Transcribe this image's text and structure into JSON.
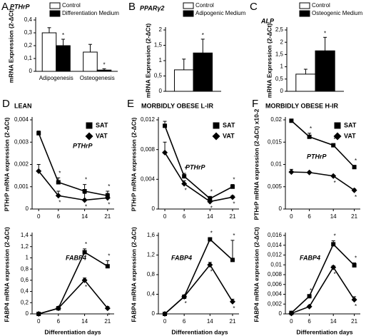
{
  "chart_data": [
    {
      "type": "bar",
      "panel": "A",
      "gene": "PTHrP",
      "ylabel": "mRNA Expression (2-ΔCt)",
      "categories": [
        "Adipogenesis",
        "Osteogenesis"
      ],
      "series": [
        {
          "name": "Control",
          "color": "#ffffff",
          "values": [
            0.3,
            0.15
          ],
          "errors": [
            0.04,
            0.06
          ],
          "significance": [
            null,
            null
          ]
        },
        {
          "name": "Differentiation Medium",
          "color": "#000000",
          "values": [
            0.2,
            0.01
          ],
          "errors": [
            0.05,
            0.01
          ],
          "significance": [
            "*",
            "*"
          ]
        }
      ],
      "ylim": [
        0,
        0.4
      ],
      "yticks": [
        0,
        {
          "value": 0.1,
          "label": "0,1"
        },
        {
          "value": 0.2,
          "label": "0,2"
        },
        {
          "value": 0.3,
          "label": "0,3"
        },
        {
          "value": 0.4,
          "label": "0,4"
        }
      ]
    },
    {
      "type": "bar",
      "panel": "B",
      "gene": "PPARγ2",
      "ylabel": "mRNA Expression (2-ΔCt)",
      "categories": [
        null
      ],
      "series": [
        {
          "name": "Control",
          "color": "#ffffff",
          "values": [
            0.7
          ],
          "errors": [
            0.35
          ],
          "significance": [
            null
          ]
        },
        {
          "name": "Adipogenic Medium",
          "color": "#000000",
          "values": [
            1.25
          ],
          "errors": [
            0.45
          ],
          "significance": [
            "*"
          ]
        }
      ],
      "ylim": [
        0,
        2
      ],
      "yticks": [
        0,
        {
          "value": 0.5,
          "label": "0,5"
        },
        1,
        {
          "value": 1.5,
          "label": "1,5"
        },
        2
      ]
    },
    {
      "type": "bar",
      "panel": "C",
      "gene": "ALP",
      "ylabel": "mRNA Expression (2-ΔCt)",
      "categories": [
        null
      ],
      "series": [
        {
          "name": "Control",
          "color": "#ffffff",
          "values": [
            0.7
          ],
          "errors": [
            0.2
          ],
          "significance": [
            null
          ]
        },
        {
          "name": "Osteogenic Medium",
          "color": "#000000",
          "values": [
            1.65
          ],
          "errors": [
            0.55
          ],
          "significance": [
            "*"
          ]
        }
      ],
      "ylim": [
        0,
        2.5
      ],
      "yticks": [
        0,
        {
          "value": 0.5,
          "label": "0,5"
        },
        1,
        {
          "value": 1.5,
          "label": "1,5"
        },
        2,
        {
          "value": 2.5,
          "label": "2,5"
        }
      ]
    },
    {
      "type": "line",
      "panel": "D",
      "title": "LEAN",
      "gene": "PTHrP",
      "ylabel": "PTHrP mRNA expression (2-ΔCt)",
      "x": [
        0,
        6,
        14,
        21
      ],
      "xlim": [
        -2,
        23
      ],
      "xticks": [
        0,
        6,
        14,
        21
      ],
      "series": [
        {
          "name": "SAT",
          "color": "#000000",
          "marker": "square",
          "values": [
            0.0034,
            0.0012,
            0.0008,
            0.0006
          ],
          "errors": [
            0.0001,
            0.0002,
            0.0003,
            0.0002
          ],
          "significance": [
            null,
            "*",
            "*",
            "*"
          ]
        },
        {
          "name": "VAT",
          "color": "#000000",
          "marker": "diamond",
          "values": [
            0.0017,
            0.0006,
            0.0004,
            0.0005
          ],
          "errors": [
            0.0003,
            0.0002,
            0.0003,
            0.0002
          ],
          "significance": [
            null,
            "*",
            "*",
            "*"
          ]
        }
      ],
      "ylim": [
        0,
        0.004
      ],
      "yticks": [
        0,
        {
          "value": 0.001,
          "label": "0,001"
        },
        {
          "value": 0.002,
          "label": "0,002"
        },
        {
          "value": 0.003,
          "label": "0,003"
        },
        {
          "value": 0.004,
          "label": "0,004"
        }
      ]
    },
    {
      "type": "line",
      "gene": "FABP4",
      "ylabel": "FABP4 mRNA expression (2-ΔCt)",
      "xlabel": "Differentiation days",
      "x": [
        0,
        6,
        14,
        21
      ],
      "xlim": [
        -2,
        23
      ],
      "xticks": [
        0,
        6,
        14,
        21
      ],
      "series": [
        {
          "name": "SAT",
          "color": "#000000",
          "marker": "square",
          "values": [
            0,
            0.1,
            1.1,
            0.85
          ],
          "errors": [
            0.02,
            0.03,
            0.06,
            0.1
          ],
          "significance": [
            null,
            null,
            "*",
            "*"
          ]
        },
        {
          "name": "VAT",
          "color": "#000000",
          "marker": "diamond",
          "values": [
            0,
            0.1,
            0.6,
            0.1
          ],
          "errors": [
            0.01,
            0.02,
            0.04,
            0.03
          ],
          "significance": [
            null,
            null,
            "*",
            "*"
          ]
        }
      ],
      "ylim": [
        0,
        1.4
      ],
      "yticks": [
        0,
        {
          "value": 0.2,
          "label": "0,2"
        },
        {
          "value": 0.4,
          "label": "0,4"
        },
        {
          "value": 0.6,
          "label": "0,6"
        },
        {
          "value": 0.8,
          "label": "0,8"
        },
        1,
        {
          "value": 1.2,
          "label": "1,2"
        },
        {
          "value": 1.4,
          "label": "1,4"
        }
      ]
    },
    {
      "type": "line",
      "panel": "E",
      "title": "MORBIDLY OBESE L-IR",
      "gene": "PTHrP",
      "ylabel": "PTHrP mRNA expression (2-ΔCt)",
      "x": [
        0,
        6,
        14,
        21
      ],
      "xlim": [
        -2,
        23
      ],
      "xticks": [
        0,
        6,
        14,
        21
      ],
      "series": [
        {
          "name": "SAT",
          "color": "#000000",
          "marker": "square",
          "values": [
            0.0112,
            0.0044,
            0.0014,
            0.003
          ],
          "errors": [
            0.0006,
            0.0004,
            0.0003,
            0.0003
          ],
          "significance": [
            null,
            "*",
            "*",
            "*"
          ]
        },
        {
          "name": "VAT",
          "color": "#000000",
          "marker": "diamond",
          "values": [
            0.0076,
            0.0034,
            0.001,
            0.0016
          ],
          "errors": [
            0.0014,
            0.0004,
            0.0003,
            0.0002
          ],
          "significance": [
            null,
            "*",
            "*",
            "*"
          ]
        }
      ],
      "ylim": [
        0,
        0.012
      ],
      "yticks": [
        0,
        {
          "value": 0.004,
          "label": "0,004"
        },
        {
          "value": 0.008,
          "label": "0,008"
        },
        {
          "value": 0.012,
          "label": "0,012"
        }
      ]
    },
    {
      "type": "line",
      "gene": "FABP4",
      "ylabel": "FABP4 mRNA expression (2-ΔCt)",
      "xlabel": "Differentiation days",
      "x": [
        0,
        6,
        14,
        21
      ],
      "xlim": [
        -2,
        23
      ],
      "xticks": [
        0,
        6,
        14,
        21
      ],
      "series": [
        {
          "name": "SAT",
          "color": "#000000",
          "marker": "square",
          "values": [
            0,
            0.35,
            1.52,
            1.1
          ],
          "errors": [
            0.01,
            0.03,
            0.03,
            0.4
          ],
          "significance": [
            null,
            null,
            "*",
            "*"
          ]
        },
        {
          "name": "VAT",
          "color": "#000000",
          "marker": "diamond",
          "values": [
            0,
            0.35,
            1.0,
            0.25
          ],
          "errors": [
            0.01,
            0.03,
            0.05,
            0.05
          ],
          "significance": [
            null,
            "*",
            "*",
            "*"
          ]
        }
      ],
      "ylim": [
        0,
        1.6
      ],
      "yticks": [
        0,
        {
          "value": 0.4,
          "label": "0,4"
        },
        {
          "value": 0.8,
          "label": "0,8"
        },
        {
          "value": 1.2,
          "label": "1,2"
        },
        {
          "value": 1.6,
          "label": "1,6"
        }
      ]
    },
    {
      "type": "line",
      "panel": "F",
      "title": "MORBIDLY OBESE H-IR",
      "gene": "PTHrP",
      "ylabel": "PTHrP mRNA expression (2-ΔCt) x10-2",
      "x": [
        0,
        6,
        14,
        21
      ],
      "xlim": [
        -2,
        23
      ],
      "xticks": [
        0,
        6,
        14,
        21
      ],
      "series": [
        {
          "name": "SAT",
          "color": "#000000",
          "marker": "square",
          "values": [
            0.0198,
            0.0162,
            0.0143,
            0.0094
          ],
          "errors": [
            0.0002,
            0.0008,
            0.0003,
            0.0004
          ],
          "significance": [
            null,
            "*",
            "*",
            "*"
          ]
        },
        {
          "name": "VAT",
          "color": "#000000",
          "marker": "diamond",
          "values": [
            0.0083,
            0.0082,
            0.0074,
            0.0042
          ],
          "errors": [
            0.0006,
            0.0002,
            0.0002,
            0.0003
          ],
          "significance": [
            null,
            null,
            "*",
            "*"
          ]
        }
      ],
      "ylim": [
        0,
        0.02
      ],
      "yticks": [
        0,
        {
          "value": 0.005,
          "label": "0,005"
        },
        {
          "value": 0.01,
          "label": "0,01"
        },
        {
          "value": 0.015,
          "label": "0,015"
        },
        {
          "value": 0.02,
          "label": "0,02"
        }
      ]
    },
    {
      "type": "line",
      "gene": "FABP4",
      "ylabel": "FABP4 mRNA expression (2-ΔCt)",
      "xlabel": "Differentiation days",
      "x": [
        0,
        6,
        14,
        21
      ],
      "xlim": [
        -2,
        23
      ],
      "xticks": [
        0,
        6,
        14,
        21
      ],
      "series": [
        {
          "name": "SAT",
          "color": "#000000",
          "marker": "square",
          "values": [
            0.0002,
            0.0036,
            0.0142,
            0.0099
          ],
          "errors": [
            0.0001,
            0.0002,
            0.0007,
            0.0005
          ],
          "significance": [
            null,
            "*",
            "*",
            "*"
          ]
        },
        {
          "name": "VAT",
          "color": "#000000",
          "marker": "diamond",
          "values": [
            0.0001,
            0.0015,
            0.0095,
            0.0029
          ],
          "errors": [
            0.0001,
            0.0002,
            0.0003,
            0.0006
          ],
          "significance": [
            null,
            null,
            "*",
            "*"
          ]
        }
      ],
      "ylim": [
        0,
        0.016
      ],
      "yticks": [
        0,
        {
          "value": 0.002,
          "label": "0,002"
        },
        {
          "value": 0.004,
          "label": "0,004"
        },
        {
          "value": 0.006,
          "label": "0,006"
        },
        {
          "value": 0.008,
          "label": "0,008"
        },
        {
          "value": 0.01,
          "label": "0,01"
        },
        {
          "value": 0.012,
          "label": "0,012"
        },
        {
          "value": 0.014,
          "label": "0,014"
        },
        {
          "value": 0.016,
          "label": "0,016"
        }
      ]
    }
  ]
}
